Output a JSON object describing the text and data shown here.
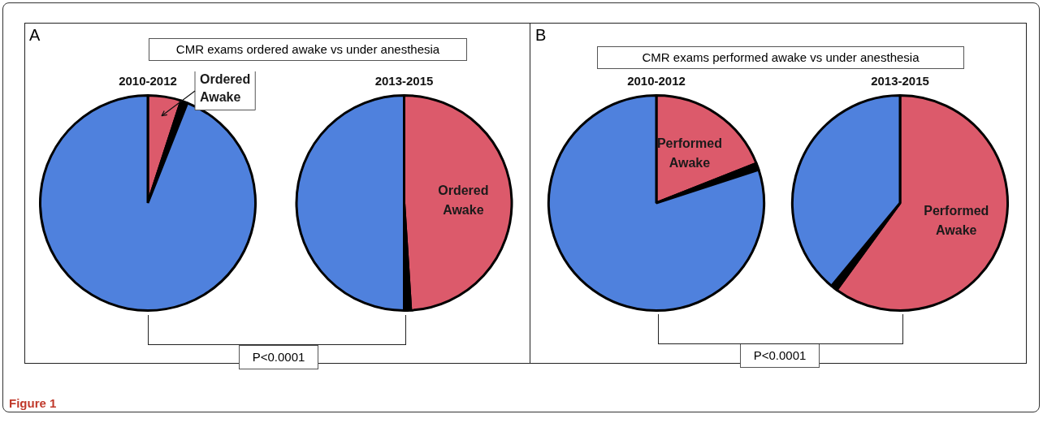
{
  "chart_data": [
    {
      "type": "pie",
      "title": "2010-2012",
      "categories": [
        "Ordered Awake",
        null,
        null
      ],
      "values": [
        5,
        1,
        94
      ],
      "colors": [
        "#dc5a6b",
        "#000000",
        "#4f81dd"
      ],
      "legend": false,
      "annotations": [
        "A",
        "CMR exams ordered awake vs under anesthesia",
        "P<0.0001",
        "Figure 1"
      ]
    },
    {
      "type": "pie",
      "title": "2013-2015",
      "categories": [
        "Ordered Awake",
        null,
        null
      ],
      "values": [
        49,
        1,
        50
      ],
      "colors": [
        "#dc5a6b",
        "#000000",
        "#4f81dd"
      ],
      "legend": false
    },
    {
      "type": "pie",
      "title": "2010-2012",
      "categories": [
        "Performed Awake",
        null,
        null
      ],
      "values": [
        19,
        1,
        80
      ],
      "colors": [
        "#dc5a6b",
        "#000000",
        "#4f81dd"
      ],
      "legend": false,
      "annotations": [
        "B",
        "CMR exams performed awake vs under anesthesia",
        "P<0.0001"
      ]
    },
    {
      "type": "pie",
      "title": "2013-2015",
      "categories": [
        "Performed Awake",
        null,
        null
      ],
      "values": [
        60,
        1,
        39
      ],
      "colors": [
        "#dc5a6b",
        "#000000",
        "#4f81dd"
      ],
      "legend": false
    }
  ]
}
